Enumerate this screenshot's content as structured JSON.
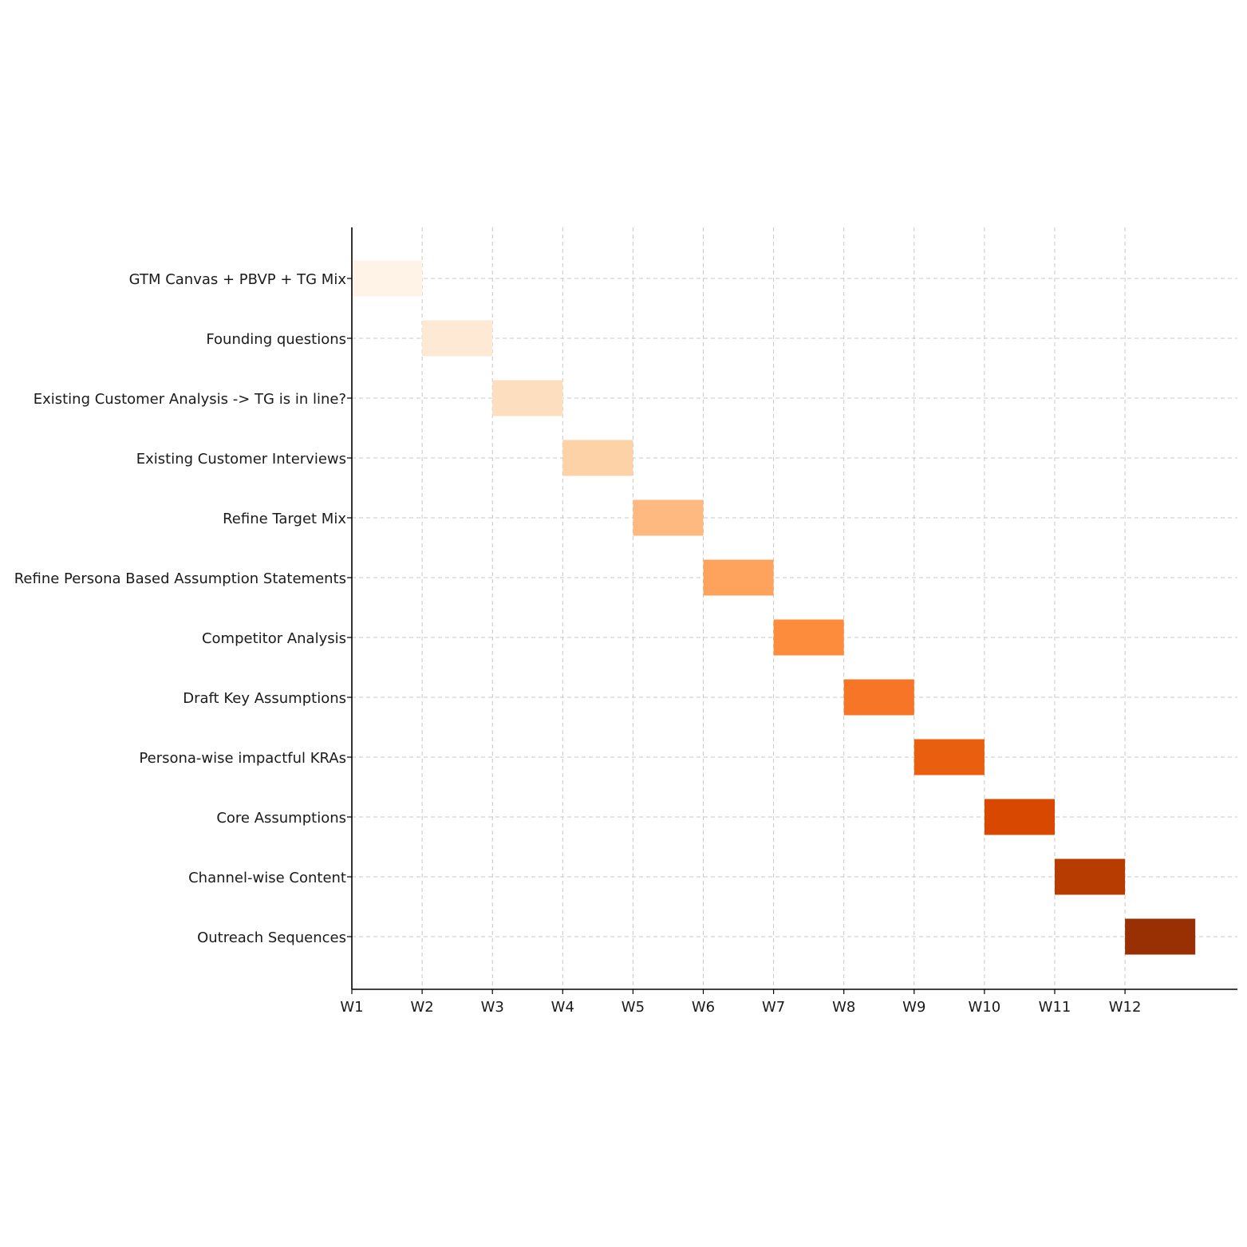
{
  "chart_data": {
    "type": "bar",
    "orientation": "horizontal",
    "title": "",
    "xlabel": "",
    "ylabel": "",
    "grid": true,
    "x_ticks": [
      "W1",
      "W2",
      "W3",
      "W4",
      "W5",
      "W6",
      "W7",
      "W8",
      "W9",
      "W10",
      "W11",
      "W12"
    ],
    "xlim": [
      1,
      13.6
    ],
    "tasks": [
      {
        "name": "GTM Canvas + PBVP + TG Mix",
        "start": 1,
        "end": 2,
        "color": "#fff2e6"
      },
      {
        "name": "Founding questions",
        "start": 2,
        "end": 3,
        "color": "#fee9d5"
      },
      {
        "name": "Existing Customer Analysis -> TG is in line?",
        "start": 3,
        "end": 4,
        "color": "#fddfbf"
      },
      {
        "name": "Existing Customer Interviews",
        "start": 4,
        "end": 5,
        "color": "#fdd2a6"
      },
      {
        "name": "Refine Target Mix",
        "start": 5,
        "end": 6,
        "color": "#fdb97f"
      },
      {
        "name": "Refine Persona Based Assumption Statements",
        "start": 6,
        "end": 7,
        "color": "#fda35e"
      },
      {
        "name": "Competitor Analysis",
        "start": 7,
        "end": 8,
        "color": "#fd8d3c"
      },
      {
        "name": "Draft Key Assumptions",
        "start": 8,
        "end": 9,
        "color": "#f77527"
      },
      {
        "name": "Persona-wise impactful KRAs",
        "start": 9,
        "end": 10,
        "color": "#ea5f0f"
      },
      {
        "name": "Core Assumptions",
        "start": 10,
        "end": 11,
        "color": "#d94801"
      },
      {
        "name": "Channel-wise Content",
        "start": 11,
        "end": 12,
        "color": "#b63c02"
      },
      {
        "name": "Outreach Sequences",
        "start": 12,
        "end": 13,
        "color": "#983003"
      }
    ]
  }
}
